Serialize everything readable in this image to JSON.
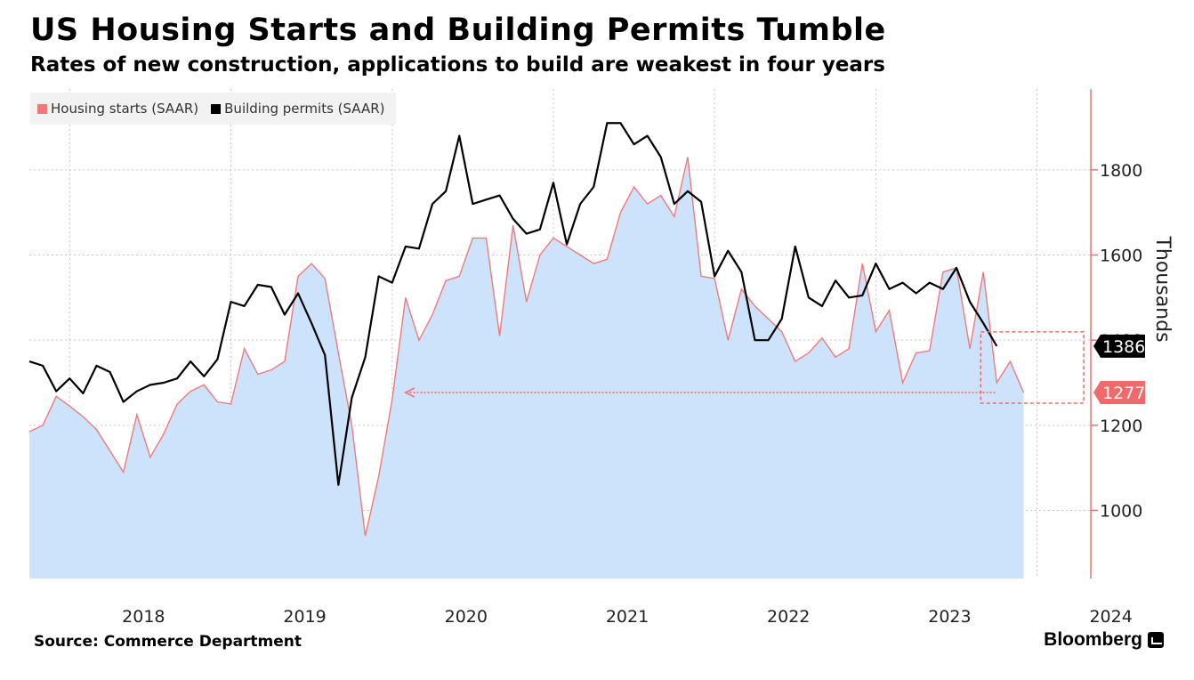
{
  "header": {
    "title": "US Housing Starts and Building Permits Tumble",
    "subtitle": "Rates of new construction, applications to build are weakest in four years"
  },
  "footer": {
    "source": "Source: Commerce Department",
    "brand": "Bloomberg"
  },
  "colors": {
    "starts_line": "#f07a7a",
    "starts_fill": "#cce3fb",
    "permits_line": "#000000",
    "axis": "#e8737a",
    "grid": "#c8c8c8",
    "badge_permits": "#000000",
    "badge_starts": "#ef6a6a"
  },
  "chart_data": {
    "type": "area",
    "ylabel": "Thousands",
    "ylim": [
      840,
      1990
    ],
    "yticks": [
      1000,
      1200,
      1400,
      1600,
      1800
    ],
    "xlim": [
      "2017-10",
      "2024-05"
    ],
    "x_tick_labels": [
      "2018",
      "2019",
      "2020",
      "2021",
      "2022",
      "2023",
      "2024"
    ],
    "grid": "dotted",
    "legend_position": "top-left",
    "series": [
      {
        "name": "Housing starts (SAAR)",
        "style": "filled area",
        "start": "2017-10",
        "values": [
          1185,
          1200,
          1268,
          1245,
          1220,
          1190,
          1140,
          1090,
          1225,
          1125,
          1180,
          1250,
          1280,
          1295,
          1255,
          1250,
          1380,
          1320,
          1330,
          1350,
          1550,
          1580,
          1545,
          1370,
          1200,
          940,
          1080,
          1260,
          1500,
          1400,
          1460,
          1540,
          1550,
          1640,
          1640,
          1410,
          1670,
          1490,
          1600,
          1640,
          1620,
          1600,
          1580,
          1590,
          1700,
          1760,
          1720,
          1740,
          1690,
          1830,
          1550,
          1545,
          1400,
          1520,
          1480,
          1450,
          1420,
          1350,
          1370,
          1405,
          1360,
          1380,
          1580,
          1420,
          1470,
          1300,
          1370,
          1375,
          1560,
          1570,
          1380,
          1560,
          1300,
          1350,
          1277
        ]
      },
      {
        "name": "Building permits (SAAR)",
        "style": "line",
        "start": "2017-10",
        "values": [
          1350,
          1340,
          1280,
          1310,
          1275,
          1340,
          1325,
          1255,
          1280,
          1295,
          1300,
          1310,
          1350,
          1315,
          1355,
          1490,
          1480,
          1530,
          1525,
          1460,
          1510,
          1440,
          1365,
          1060,
          1265,
          1360,
          1550,
          1535,
          1620,
          1615,
          1720,
          1750,
          1880,
          1720,
          1730,
          1740,
          1685,
          1650,
          1660,
          1770,
          1625,
          1720,
          1760,
          1910,
          1910,
          1860,
          1880,
          1830,
          1720,
          1750,
          1725,
          1550,
          1610,
          1560,
          1400,
          1400,
          1450,
          1620,
          1500,
          1480,
          1540,
          1500,
          1505,
          1580,
          1520,
          1535,
          1510,
          1535,
          1520,
          1570,
          1490,
          1440,
          1386
        ]
      }
    ],
    "annotations": [
      {
        "label": "1386",
        "series": "Building permits (SAAR)"
      },
      {
        "label": "1277",
        "series": "Housing starts (SAAR)"
      }
    ]
  }
}
